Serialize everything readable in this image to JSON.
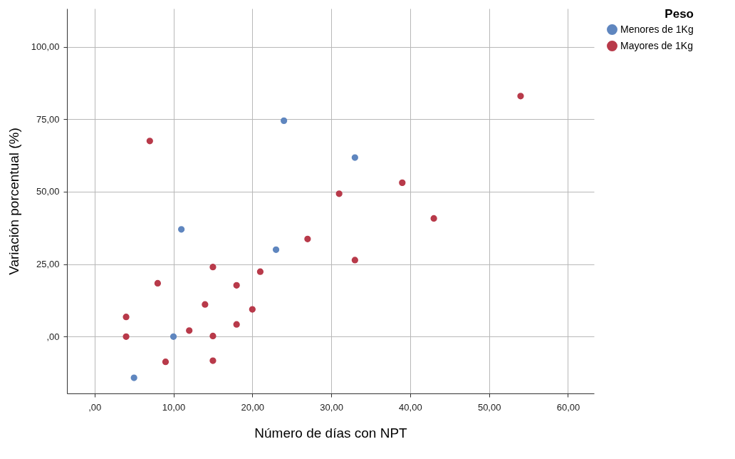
{
  "chart_data": {
    "type": "scatter",
    "xlabel": "Número de días con NPT",
    "ylabel": "Variación porcentual (%)",
    "legend_title": "Peso",
    "legend": "top right",
    "grid": true,
    "marker": "circle",
    "xlim": [
      -3.5,
      63.3
    ],
    "ylim": [
      -19.6,
      113.2
    ],
    "xticks": [
      {
        "value": 0,
        "label": ",00"
      },
      {
        "value": 10,
        "label": "10,00"
      },
      {
        "value": 20,
        "label": "20,00"
      },
      {
        "value": 30,
        "label": "30,00"
      },
      {
        "value": 40,
        "label": "40,00"
      },
      {
        "value": 50,
        "label": "50,00"
      },
      {
        "value": 60,
        "label": "60,00"
      }
    ],
    "yticks": [
      {
        "value": 0,
        "label": ",00"
      },
      {
        "value": 25,
        "label": "25,00"
      },
      {
        "value": 50,
        "label": "50,00"
      },
      {
        "value": 75,
        "label": "75,00"
      },
      {
        "value": 100,
        "label": "100,00"
      }
    ],
    "series": [
      {
        "name": "Menores de 1Kg",
        "color": "#5f86bf",
        "x": [
          5,
          10,
          11,
          23,
          24,
          33
        ],
        "values": [
          -14.2,
          0,
          37,
          30,
          74.5,
          61.8
        ]
      },
      {
        "name": "Mayores de 1Kg",
        "color": "#b83a4a",
        "x": [
          4,
          4,
          7,
          8,
          9,
          12,
          14,
          15,
          15,
          15,
          18,
          18,
          20,
          21,
          27,
          31,
          33,
          39,
          43,
          54
        ],
        "values": [
          6.8,
          0,
          67.5,
          18.4,
          -8.7,
          2.1,
          11.1,
          24,
          0.2,
          -8.3,
          17.7,
          4.2,
          9.4,
          22.4,
          33.7,
          49.3,
          26.4,
          53.1,
          40.8,
          83
        ]
      }
    ]
  }
}
